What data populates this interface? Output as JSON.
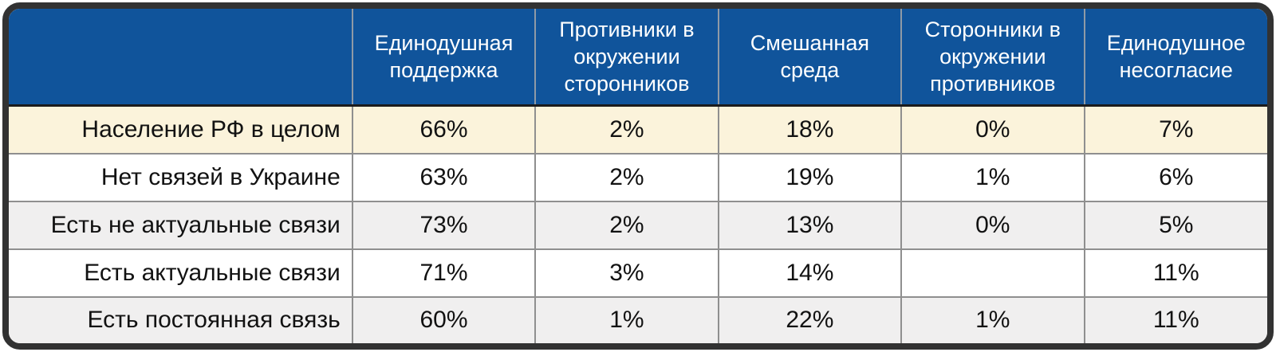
{
  "table": {
    "columns": [
      "",
      "Единодушная поддержка",
      "Противники в окружении сторонников",
      "Смешанная среда",
      "Сторонники в окружении противников",
      "Единодушное несогласие"
    ],
    "rows": [
      {
        "label": "Население РФ в целом",
        "values": [
          "66%",
          "2%",
          "18%",
          "0%",
          "7%"
        ]
      },
      {
        "label": "Нет связей в Украине",
        "values": [
          "63%",
          "2%",
          "19%",
          "1%",
          "6%"
        ]
      },
      {
        "label": "Есть не актуальные связи",
        "values": [
          "73%",
          "2%",
          "13%",
          "0%",
          "5%"
        ]
      },
      {
        "label": "Есть актуальные связи",
        "values": [
          "71%",
          "3%",
          "14%",
          "",
          "11%"
        ]
      },
      {
        "label": "Есть постоянная связь",
        "values": [
          "60%",
          "1%",
          "22%",
          "1%",
          "11%"
        ]
      }
    ],
    "colors": {
      "header_bg": "#10549B",
      "header_text": "#FFFFFF",
      "highlight_row_bg": "#FBF3DB",
      "stripe_row_bg": "#F0EFEF",
      "white_row_bg": "#FFFFFF",
      "frame_border": "#323232",
      "grid_line": "#8F8F8F",
      "header_divider": "#8F9AA6",
      "header_bottom_line": "#1C1C1C"
    }
  },
  "chart_data": {
    "type": "table",
    "title": "",
    "columns": [
      "",
      "Единодушная поддержка",
      "Противники в окружении сторонников",
      "Смешанная среда",
      "Сторонники в окружении противников",
      "Единодушное несогласие"
    ],
    "rows": [
      [
        "Население РФ в целом",
        "66%",
        "2%",
        "18%",
        "0%",
        "7%"
      ],
      [
        "Нет связей в Украине",
        "63%",
        "2%",
        "19%",
        "1%",
        "6%"
      ],
      [
        "Есть не актуальные связи",
        "73%",
        "2%",
        "13%",
        "0%",
        "5%"
      ],
      [
        "Есть актуальные связи",
        "71%",
        "3%",
        "14%",
        "",
        "11%"
      ],
      [
        "Есть постоянная связь",
        "60%",
        "1%",
        "22%",
        "1%",
        "11%"
      ]
    ],
    "legend_position": "none",
    "grid": true
  }
}
